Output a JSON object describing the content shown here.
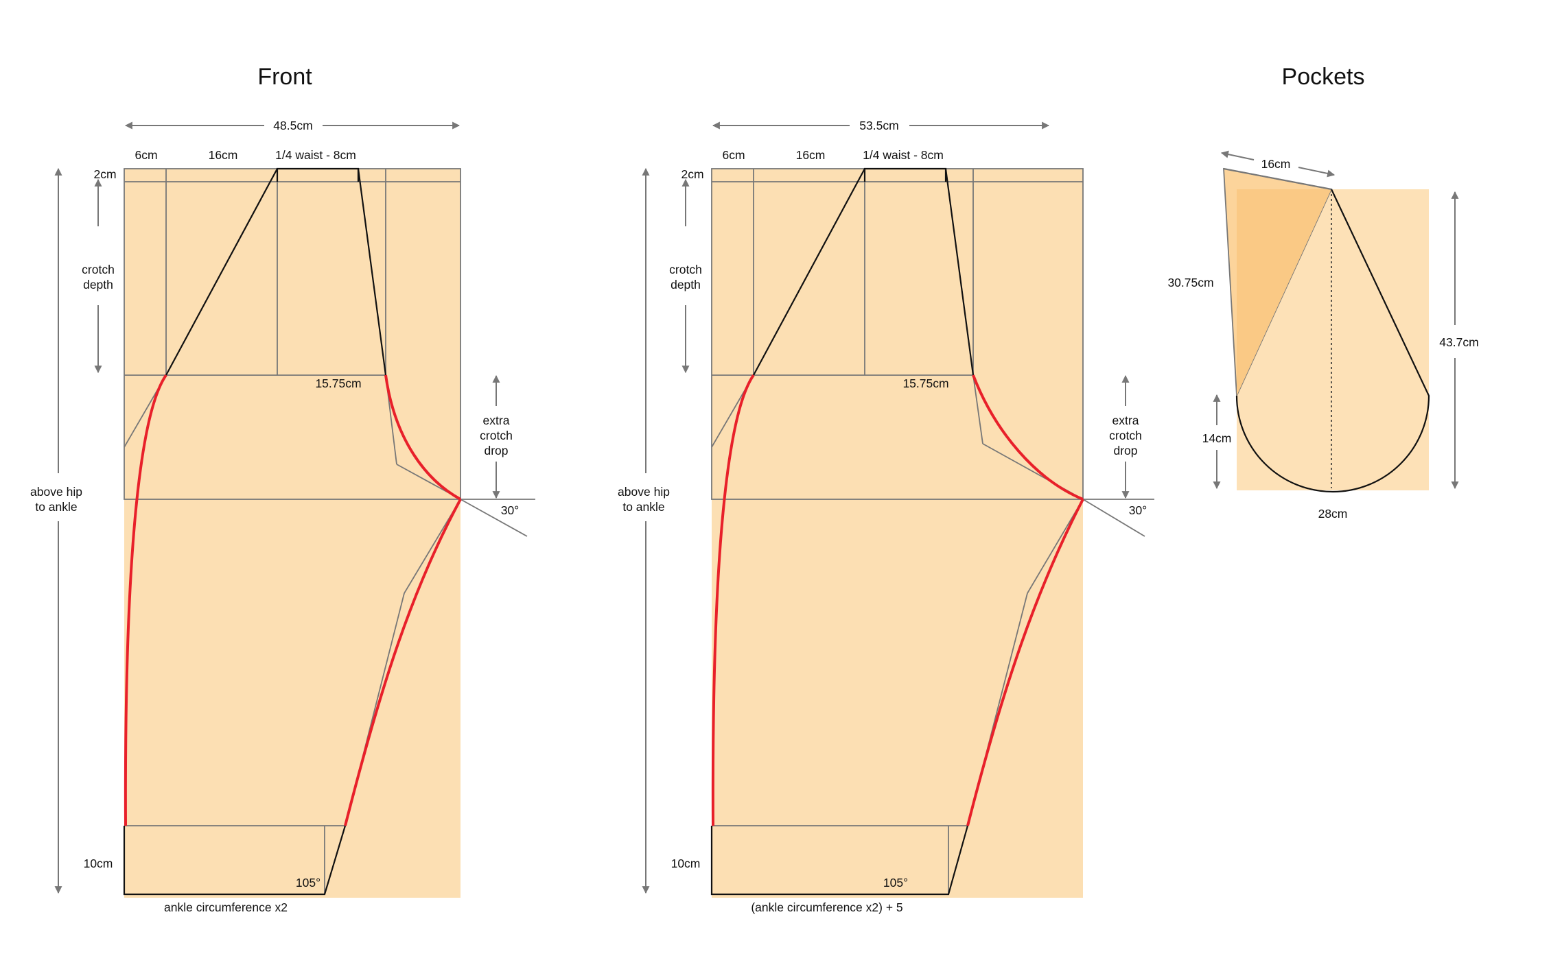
{
  "colors": {
    "fabric": "#fcdfb3",
    "pocket_overlay": "#fac985",
    "pocket_back": "#fde1b7",
    "guide": "#777777",
    "outline": "#111111",
    "seam": "#e8202a"
  },
  "titles": {
    "front": "Front",
    "back": "",
    "pockets": "Pockets"
  },
  "front": {
    "total_width": "48.5cm",
    "seg1": "6cm",
    "seg2": "16cm",
    "seg3": "1/4 waist - 8cm",
    "waistband": "2cm",
    "crotch_depth_1": "crotch",
    "crotch_depth_2": "depth",
    "hip_ankle_1": "above hip",
    "hip_ankle_2": "to ankle",
    "hip_line": "15.75cm",
    "extra_1": "extra",
    "extra_2": "crotch",
    "extra_3": "drop",
    "angle_top": "30°",
    "hem": "10cm",
    "angle_bottom": "105°",
    "ankle": "ankle circumference x2"
  },
  "back": {
    "total_width": "53.5cm",
    "seg1": "6cm",
    "seg2": "16cm",
    "seg3": "1/4 waist - 8cm",
    "waistband": "2cm",
    "crotch_depth_1": "crotch",
    "crotch_depth_2": "depth",
    "hip_ankle_1": "above hip",
    "hip_ankle_2": "to ankle",
    "hip_line": "15.75cm",
    "extra_1": "extra",
    "extra_2": "crotch",
    "extra_3": "drop",
    "angle_top": "30°",
    "hem": "10cm",
    "angle_bottom": "105°",
    "ankle": "(ankle circumference x2) + 5"
  },
  "pockets": {
    "top": "16cm",
    "slant": "30.75cm",
    "height": "43.7cm",
    "curve_height": "14cm",
    "bottom": "28cm"
  }
}
